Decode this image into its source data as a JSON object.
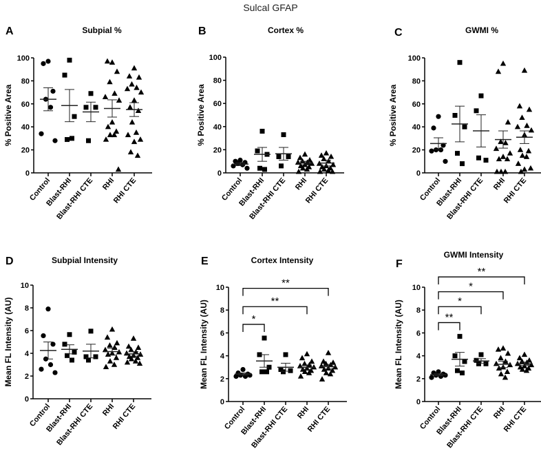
{
  "figure_title": "Sulcal GFAP",
  "chart_data": [
    {
      "type": "scatter",
      "letter": "A",
      "title": "Subpial %",
      "ylabel": "% Positive Area",
      "ylim": [
        0,
        100
      ],
      "yticks": [
        0,
        20,
        40,
        60,
        80,
        100
      ],
      "categories": [
        "Control",
        "Blast-RHI",
        "Blast-RHI CTE",
        "RHI",
        "RHI CTE"
      ],
      "markers": [
        "circle",
        "square",
        "square",
        "triangle",
        "triangle"
      ],
      "points": [
        [
          97,
          95,
          71,
          64,
          57,
          34,
          28
        ],
        [
          98,
          85,
          49,
          29,
          30
        ],
        [
          69,
          57,
          57,
          28
        ],
        [
          96,
          97,
          88,
          79,
          69,
          66,
          63,
          44,
          40,
          36,
          33,
          33,
          29,
          3
        ],
        [
          91,
          84,
          83,
          77,
          74,
          73,
          70,
          63,
          57,
          54,
          44,
          35,
          33,
          29,
          27,
          18,
          15
        ]
      ],
      "mean": [
        64,
        58.5,
        53,
        56,
        55
      ],
      "sem": [
        10,
        14,
        8.5,
        7.5,
        6
      ],
      "significance": []
    },
    {
      "type": "scatter",
      "letter": "B",
      "title": "Cortex %",
      "ylabel": "% Positive Area",
      "ylim": [
        0,
        100
      ],
      "yticks": [
        0,
        20,
        40,
        60,
        80,
        100
      ],
      "categories": [
        "Control",
        "Blast-RHI",
        "Blast-RHI CTE",
        "RHI",
        "RHI CTE"
      ],
      "markers": [
        "circle",
        "square",
        "square",
        "triangle",
        "triangle"
      ],
      "points": [
        [
          11,
          10,
          9,
          8,
          7,
          6,
          4
        ],
        [
          36,
          19,
          16,
          4,
          3
        ],
        [
          33,
          14,
          14,
          6
        ],
        [
          16,
          13,
          11,
          10,
          9,
          9,
          8,
          7,
          6,
          5,
          4,
          3,
          1
        ],
        [
          17,
          15,
          14,
          12,
          10,
          8,
          7,
          6,
          5,
          4,
          3,
          2,
          1,
          1
        ]
      ],
      "mean": [
        7.6,
        16,
        16.5,
        8.5,
        8.5
      ],
      "sem": [
        1.3,
        6,
        5.5,
        1.5,
        2.5
      ],
      "significance": []
    },
    {
      "type": "scatter",
      "letter": "C",
      "title": "GWMI %",
      "ylabel": "% Positive Area",
      "ylim": [
        0,
        100
      ],
      "yticks": [
        0,
        20,
        40,
        60,
        80,
        100
      ],
      "categories": [
        "Control",
        "Blast-RHI",
        "Blast-RHI CTE",
        "RHI",
        "RHI CTE"
      ],
      "markers": [
        "circle",
        "square",
        "square",
        "triangle",
        "triangle"
      ],
      "points": [
        [
          49,
          39,
          24,
          20,
          20,
          19,
          10
        ],
        [
          96,
          50,
          40,
          17,
          8
        ],
        [
          67,
          54,
          11,
          13
        ],
        [
          95,
          88,
          44,
          27,
          26,
          21,
          17,
          14,
          12,
          12,
          1,
          1,
          1
        ],
        [
          89,
          58,
          55,
          48,
          41,
          40,
          37,
          33,
          20,
          19,
          15,
          14,
          8,
          4,
          3,
          1
        ]
      ],
      "mean": [
        25.5,
        42.5,
        36.5,
        29,
        31
      ],
      "sem": [
        5,
        15.5,
        14,
        7.5,
        5.5
      ],
      "significance": []
    },
    {
      "type": "scatter",
      "letter": "D",
      "title": "Subpial Intensity",
      "ylabel": "Mean FL Intensity (AU)",
      "ylim": [
        0,
        10
      ],
      "yticks": [
        0,
        2,
        4,
        6,
        8,
        10
      ],
      "categories": [
        "Control",
        "Blast-RHI",
        "Blast-RHI CTE",
        "RHI",
        "RHI CTE"
      ],
      "markers": [
        "circle",
        "square",
        "square",
        "triangle",
        "triangle"
      ],
      "points": [
        [
          7.9,
          5.55,
          4.8,
          3.5,
          3.0,
          2.6,
          2.3
        ],
        [
          5.65,
          4.8,
          4.1,
          3.8,
          3.4
        ],
        [
          5.95,
          3.7,
          3.7,
          3.4
        ],
        [
          6.1,
          5.4,
          4.9,
          4.7,
          4.5,
          4.3,
          4.1,
          4.0,
          3.9,
          3.6,
          3.3,
          3.0,
          2.8
        ],
        [
          5.3,
          4.6,
          4.5,
          4.3,
          4.1,
          4.0,
          3.9,
          3.8,
          3.7,
          3.6,
          3.5,
          3.3,
          3.2,
          3.1
        ]
      ],
      "mean": [
        4.25,
        4.35,
        4.2,
        4.15,
        3.95
      ],
      "sem": [
        0.75,
        0.4,
        0.6,
        0.3,
        0.2
      ],
      "significance": []
    },
    {
      "type": "scatter",
      "letter": "E",
      "title": "Cortex Intensity",
      "ylabel": "Mean FL Intensity (AU)",
      "ylim": [
        0,
        10
      ],
      "yticks": [
        0,
        2,
        4,
        6,
        8,
        10
      ],
      "categories": [
        "Control",
        "Blast-RHI",
        "Blast-RHI CTE",
        "RHI",
        "RHI CTE"
      ],
      "markers": [
        "circle",
        "square",
        "square",
        "triangle",
        "triangle"
      ],
      "points": [
        [
          2.8,
          2.5,
          2.4,
          2.3,
          2.2,
          2.2,
          2.3
        ],
        [
          5.55,
          4.1,
          3.0,
          2.6,
          2.6
        ],
        [
          4.1,
          2.8,
          2.7,
          2.6
        ],
        [
          4.15,
          3.8,
          3.5,
          3.3,
          3.2,
          3.1,
          3.0,
          2.9,
          2.8,
          2.7,
          2.6,
          2.5,
          2.2
        ],
        [
          4.25,
          3.5,
          3.4,
          3.3,
          3.2,
          3.1,
          3.0,
          2.9,
          2.8,
          2.7,
          2.5,
          2.4,
          1.95
        ]
      ],
      "mean": [
        2.4,
        3.55,
        3.0,
        3.0,
        3.05
      ],
      "sem": [
        0.1,
        0.55,
        0.35,
        0.2,
        0.2
      ],
      "significance": [
        {
          "from": 0,
          "to": 1,
          "level": 6.75,
          "label": "*"
        },
        {
          "from": 0,
          "to": 3,
          "level": 8.3,
          "label": "**"
        },
        {
          "from": 0,
          "to": 4,
          "level": 9.9,
          "label": "**"
        }
      ]
    },
    {
      "type": "scatter",
      "letter": "F",
      "title": "GWMI Intensity",
      "ylabel": "Mean FL Intensity (AU)",
      "ylim": [
        0,
        10
      ],
      "yticks": [
        0,
        2,
        4,
        6,
        8,
        10
      ],
      "categories": [
        "Control",
        "Blast-RHI",
        "Blast-RHI CTE",
        "RHI",
        "RHI CTE"
      ],
      "markers": [
        "circle",
        "square",
        "square",
        "triangle",
        "triangle"
      ],
      "points": [
        [
          2.6,
          2.5,
          2.4,
          2.3,
          2.2,
          2.1,
          2.3
        ],
        [
          5.7,
          4.0,
          3.5,
          2.7,
          2.5
        ],
        [
          4.1,
          3.6,
          3.3,
          3.3
        ],
        [
          4.65,
          4.55,
          4.2,
          3.8,
          3.5,
          3.3,
          3.2,
          3.0,
          2.9,
          2.6,
          2.4,
          2.1
        ],
        [
          4.1,
          3.8,
          3.6,
          3.5,
          3.4,
          3.3,
          3.2,
          3.1,
          3.0,
          2.9,
          2.8,
          2.7
        ]
      ],
      "mean": [
        2.35,
        3.7,
        3.55,
        3.25,
        3.3
      ],
      "sem": [
        0.1,
        0.6,
        0.2,
        0.28,
        0.15
      ],
      "significance": [
        {
          "from": 0,
          "to": 1,
          "level": 6.9,
          "label": "**"
        },
        {
          "from": 0,
          "to": 2,
          "level": 8.3,
          "label": "*"
        },
        {
          "from": 0,
          "to": 3,
          "level": 9.6,
          "label": "*"
        },
        {
          "from": 0,
          "to": 4,
          "level": 10.9,
          "label": "**"
        }
      ]
    }
  ]
}
